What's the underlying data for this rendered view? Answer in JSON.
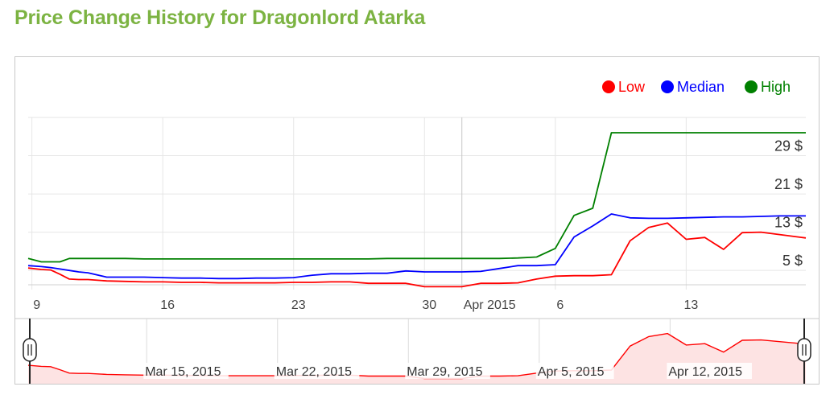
{
  "title": "Price Change History for Dragonlord Atarka",
  "chart_data": {
    "type": "line",
    "legend": {
      "placement": "top-right",
      "entries": [
        {
          "name": "Low",
          "color": "#ff0000"
        },
        {
          "name": "Median",
          "color": "#0000ff"
        },
        {
          "name": "High",
          "color": "#008000"
        }
      ]
    },
    "y_axis": {
      "side": "right",
      "ticks": [
        "5 $",
        "13 $",
        "21 $",
        "29 $"
      ],
      "tick_values": [
        5,
        13,
        21,
        29
      ],
      "ylim": [
        2,
        37
      ]
    },
    "x_axis": {
      "ticks": [
        "9",
        "16",
        "23",
        "30",
        "Apr 2015",
        "6",
        "13"
      ],
      "tick_days": [
        -1,
        6,
        13,
        20,
        22,
        27,
        34
      ],
      "xlim": [
        -1.2,
        40.4
      ]
    },
    "x": [
      -1.2,
      -0.5,
      0,
      0.5,
      1,
      1.5,
      2,
      3,
      4,
      5,
      6,
      7,
      8,
      9,
      10,
      11,
      12,
      13,
      14,
      15,
      16,
      17,
      18,
      19,
      20,
      21,
      22,
      23,
      24,
      25,
      26,
      27,
      28,
      29,
      30,
      31,
      32,
      33,
      34,
      35,
      36,
      37,
      38,
      39,
      40,
      40.4
    ],
    "series": [
      {
        "name": "Low",
        "color": "#ff0000",
        "values": [
          5.5,
          5.2,
          5.1,
          4.2,
          3.2,
          3.1,
          3.1,
          2.8,
          2.7,
          2.6,
          2.6,
          2.5,
          2.5,
          2.4,
          2.4,
          2.4,
          2.4,
          2.5,
          2.5,
          2.6,
          2.6,
          2.3,
          2.3,
          2.3,
          1.6,
          1.6,
          1.6,
          2.3,
          2.3,
          2.4,
          3.2,
          3.8,
          3.9,
          3.9,
          4.1,
          11.2,
          14.0,
          14.9,
          11.5,
          11.9,
          9.4,
          12.9,
          13.0,
          12.5,
          12.0,
          11.8
        ]
      },
      {
        "name": "Median",
        "color": "#0000ff",
        "values": [
          6.0,
          5.8,
          5.6,
          5.3,
          5.0,
          4.7,
          4.5,
          3.6,
          3.6,
          3.6,
          3.5,
          3.4,
          3.4,
          3.3,
          3.3,
          3.4,
          3.4,
          3.5,
          4.0,
          4.3,
          4.3,
          4.4,
          4.4,
          4.9,
          4.7,
          4.7,
          4.7,
          4.8,
          5.4,
          6.0,
          6.0,
          6.2,
          12.0,
          14.3,
          16.8,
          16.0,
          15.9,
          15.9,
          16.0,
          16.1,
          16.2,
          16.2,
          16.3,
          16.4,
          16.4,
          16.4
        ]
      },
      {
        "name": "High",
        "color": "#008000",
        "values": [
          7.5,
          6.8,
          6.8,
          6.8,
          7.5,
          7.5,
          7.5,
          7.5,
          7.5,
          7.4,
          7.4,
          7.4,
          7.4,
          7.4,
          7.4,
          7.4,
          7.4,
          7.4,
          7.4,
          7.4,
          7.4,
          7.4,
          7.5,
          7.5,
          7.5,
          7.5,
          7.5,
          7.5,
          7.5,
          7.6,
          7.8,
          9.6,
          16.5,
          18.0,
          33.8,
          33.8,
          33.8,
          33.8,
          33.8,
          33.8,
          33.8,
          33.8,
          33.8,
          33.8,
          33.8,
          33.8
        ]
      }
    ],
    "grid": true,
    "overview": {
      "labels": [
        "Mar 15, 2015",
        "Mar 22, 2015",
        "Mar 29, 2015",
        "Apr 5, 2015",
        "Apr 12, 2015"
      ],
      "series": "Low",
      "fill_color": "#fde3e3",
      "line_color": "#ff0000"
    }
  }
}
